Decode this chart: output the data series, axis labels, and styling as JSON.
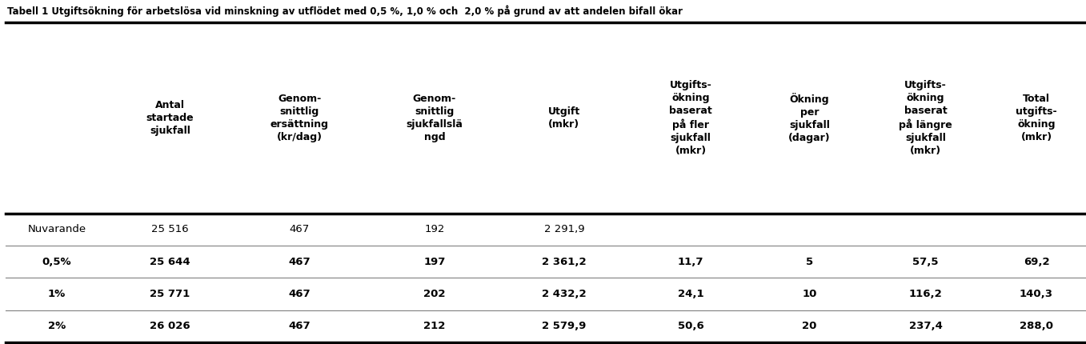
{
  "title": "Tabell 1 Utgiftsökning för arbetslösa vid minskning av utflödet med 0,5 %, 1,0 % och  2,0 % på grund av att andelen bifall ökar",
  "col_headers": [
    "Antal\nstartade\nsjukfall",
    "Genom-\nsnittlig\nersättning\n(kr/dag)",
    "Genom-\nsnittlig\nsjukfallslä\nngd",
    "Utgift\n(mkr)",
    "Utgifts-\nökning\nbaserat\npå fler\nsjukfall\n(mkr)",
    "Ökning\nper\nsjukfall\n(dagar)",
    "Utgifts-\nökning\nbaserat\npå längre\nsjukfall\n(mkr)",
    "Total\nutgifts-\nökning\n(mkr)"
  ],
  "row_labels": [
    "Nuvarande",
    "0,5%",
    "1%",
    "2%"
  ],
  "row_labels_bold": [
    false,
    true,
    true,
    true
  ],
  "table_data": [
    [
      "25 516",
      "467",
      "192",
      "2 291,9",
      "",
      "",
      "",
      ""
    ],
    [
      "25 644",
      "467",
      "197",
      "2 361,2",
      "11,7",
      "5",
      "57,5",
      "69,2"
    ],
    [
      "25 771",
      "467",
      "202",
      "2 432,2",
      "24,1",
      "10",
      "116,2",
      "140,3"
    ],
    [
      "26 026",
      "467",
      "212",
      "2 579,9",
      "50,6",
      "20",
      "237,4",
      "288,0"
    ]
  ],
  "title_fontsize": 8.5,
  "header_fontsize": 9,
  "data_fontsize": 9.5,
  "fig_width": 13.57,
  "fig_height": 4.3
}
